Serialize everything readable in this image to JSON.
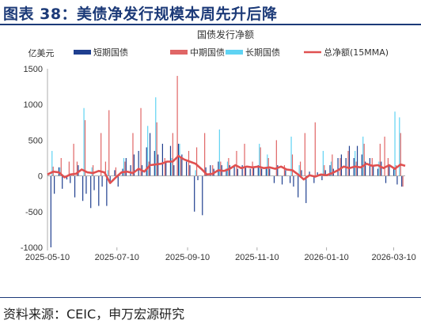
{
  "figure": {
    "title": "图表 38：美债净发行规模本周先升后降",
    "source": "资料来源：CEIC，申万宏源研究"
  },
  "colors": {
    "short": "#1f3f8f",
    "mid": "#e06666",
    "long": "#5fd3f3",
    "total": "#e05050",
    "title": "#1c3a78"
  },
  "chart_data": {
    "type": "bar",
    "title": "国债发行净额",
    "ylabel": "亿美元",
    "ylim": [
      -1000,
      1500
    ],
    "yticks": [
      -1000,
      -500,
      0,
      500,
      1000,
      1500
    ],
    "xlim": [
      "2025-05-10",
      "2026-03-20"
    ],
    "xticks": [
      "2025-05-10",
      "2025-07-10",
      "2025-09-10",
      "2025-11-10",
      "2026-01-10",
      "2026-03-10"
    ],
    "legend_placement": "top",
    "grid": false,
    "series": [
      {
        "name": "短期国债",
        "kind": "bar",
        "points": [
          [
            "2025-05-13",
            -1000
          ],
          [
            "2025-05-16",
            -250
          ],
          [
            "2025-05-20",
            120
          ],
          [
            "2025-05-23",
            -180
          ],
          [
            "2025-05-27",
            -50
          ],
          [
            "2025-05-30",
            -100
          ],
          [
            "2025-06-03",
            -300
          ],
          [
            "2025-06-06",
            150
          ],
          [
            "2025-06-10",
            -350
          ],
          [
            "2025-06-13",
            -250
          ],
          [
            "2025-06-17",
            -450
          ],
          [
            "2025-06-20",
            -200
          ],
          [
            "2025-06-24",
            -420
          ],
          [
            "2025-06-27",
            -150
          ],
          [
            "2025-07-01",
            -420
          ],
          [
            "2025-07-04",
            -80
          ],
          [
            "2025-07-08",
            80
          ],
          [
            "2025-07-11",
            -150
          ],
          [
            "2025-07-15",
            100
          ],
          [
            "2025-07-18",
            250
          ],
          [
            "2025-07-22",
            150
          ],
          [
            "2025-07-25",
            300
          ],
          [
            "2025-07-29",
            350
          ],
          [
            "2025-08-01",
            150
          ],
          [
            "2025-08-05",
            400
          ],
          [
            "2025-08-08",
            600
          ],
          [
            "2025-08-12",
            350
          ],
          [
            "2025-08-15",
            300
          ],
          [
            "2025-08-19",
            450
          ],
          [
            "2025-08-22",
            200
          ],
          [
            "2025-08-26",
            420
          ],
          [
            "2025-08-29",
            150
          ],
          [
            "2025-09-02",
            450
          ],
          [
            "2025-09-05",
            300
          ],
          [
            "2025-09-09",
            200
          ],
          [
            "2025-09-12",
            150
          ],
          [
            "2025-09-16",
            -500
          ],
          [
            "2025-09-19",
            -60
          ],
          [
            "2025-09-23",
            -550
          ],
          [
            "2025-09-26",
            120
          ],
          [
            "2025-09-30",
            150
          ],
          [
            "2025-10-03",
            100
          ],
          [
            "2025-10-07",
            200
          ],
          [
            "2025-10-10",
            150
          ],
          [
            "2025-10-14",
            100
          ],
          [
            "2025-10-17",
            150
          ],
          [
            "2025-10-21",
            150
          ],
          [
            "2025-10-24",
            100
          ],
          [
            "2025-10-28",
            150
          ],
          [
            "2025-10-31",
            120
          ],
          [
            "2025-11-04",
            100
          ],
          [
            "2025-11-07",
            120
          ],
          [
            "2025-11-11",
            150
          ],
          [
            "2025-11-14",
            100
          ],
          [
            "2025-11-18",
            120
          ],
          [
            "2025-11-21",
            100
          ],
          [
            "2025-11-25",
            -100
          ],
          [
            "2025-11-28",
            150
          ],
          [
            "2025-12-02",
            -120
          ],
          [
            "2025-12-05",
            80
          ],
          [
            "2025-12-09",
            -100
          ],
          [
            "2025-12-12",
            -150
          ],
          [
            "2025-12-16",
            -300
          ],
          [
            "2025-12-19",
            80
          ],
          [
            "2025-12-23",
            -380
          ],
          [
            "2025-12-26",
            60
          ],
          [
            "2025-12-30",
            -100
          ],
          [
            "2026-01-02",
            50
          ],
          [
            "2026-01-06",
            -60
          ],
          [
            "2026-01-09",
            80
          ],
          [
            "2026-01-13",
            150
          ],
          [
            "2026-01-16",
            100
          ],
          [
            "2026-01-20",
            250
          ],
          [
            "2026-01-23",
            300
          ],
          [
            "2026-01-27",
            250
          ],
          [
            "2026-01-30",
            420
          ],
          [
            "2026-02-03",
            250
          ],
          [
            "2026-02-06",
            420
          ],
          [
            "2026-02-10",
            300
          ],
          [
            "2026-02-13",
            200
          ],
          [
            "2026-02-17",
            250
          ],
          [
            "2026-02-20",
            150
          ],
          [
            "2026-02-24",
            100
          ],
          [
            "2026-02-27",
            200
          ],
          [
            "2026-03-03",
            -100
          ],
          [
            "2026-03-06",
            150
          ],
          [
            "2026-03-10",
            100
          ],
          [
            "2026-03-13",
            -120
          ],
          [
            "2026-03-17",
            -150
          ]
        ]
      },
      {
        "name": "中期国债",
        "kind": "bar",
        "points": [
          [
            "2025-05-15",
            130
          ],
          [
            "2025-05-22",
            250
          ],
          [
            "2025-05-29",
            200
          ],
          [
            "2025-06-02",
            450
          ],
          [
            "2025-06-05",
            200
          ],
          [
            "2025-06-12",
            780
          ],
          [
            "2025-06-19",
            150
          ],
          [
            "2025-06-26",
            600
          ],
          [
            "2025-06-30",
            200
          ],
          [
            "2025-07-03",
            920
          ],
          [
            "2025-07-09",
            120
          ],
          [
            "2025-07-17",
            200
          ],
          [
            "2025-07-24",
            600
          ],
          [
            "2025-07-31",
            950
          ],
          [
            "2025-08-07",
            200
          ],
          [
            "2025-08-14",
            750
          ],
          [
            "2025-08-21",
            250
          ],
          [
            "2025-08-28",
            600
          ],
          [
            "2025-09-01",
            1400
          ],
          [
            "2025-09-04",
            250
          ],
          [
            "2025-09-11",
            350
          ],
          [
            "2025-09-18",
            400
          ],
          [
            "2025-09-25",
            600
          ],
          [
            "2025-10-02",
            150
          ],
          [
            "2025-10-09",
            200
          ],
          [
            "2025-10-16",
            250
          ],
          [
            "2025-10-23",
            350
          ],
          [
            "2025-10-30",
            450
          ],
          [
            "2025-11-06",
            200
          ],
          [
            "2025-11-13",
            400
          ],
          [
            "2025-11-20",
            250
          ],
          [
            "2025-11-27",
            500
          ],
          [
            "2025-12-04",
            150
          ],
          [
            "2025-12-11",
            300
          ],
          [
            "2025-12-18",
            200
          ],
          [
            "2025-12-22",
            600
          ],
          [
            "2025-12-31",
            750
          ],
          [
            "2026-01-08",
            150
          ],
          [
            "2026-01-15",
            300
          ],
          [
            "2026-01-22",
            250
          ],
          [
            "2026-01-29",
            350
          ],
          [
            "2026-02-05",
            200
          ],
          [
            "2026-02-12",
            450
          ],
          [
            "2026-02-19",
            250
          ],
          [
            "2026-02-26",
            450
          ],
          [
            "2026-03-02",
            550
          ],
          [
            "2026-03-05",
            250
          ],
          [
            "2026-03-12",
            150
          ],
          [
            "2026-03-16",
            600
          ],
          [
            "2026-03-18",
            -150
          ]
        ]
      },
      {
        "name": "长期国债",
        "kind": "bar",
        "points": [
          [
            "2025-05-14",
            350
          ],
          [
            "2025-05-21",
            120
          ],
          [
            "2025-06-11",
            950
          ],
          [
            "2025-06-18",
            120
          ],
          [
            "2025-07-02",
            80
          ],
          [
            "2025-07-16",
            250
          ],
          [
            "2025-08-06",
            700
          ],
          [
            "2025-08-13",
            1100
          ],
          [
            "2025-08-27",
            250
          ],
          [
            "2025-09-03",
            450
          ],
          [
            "2025-09-17",
            80
          ],
          [
            "2025-10-08",
            650
          ],
          [
            "2025-10-15",
            200
          ],
          [
            "2025-11-12",
            450
          ],
          [
            "2025-11-19",
            300
          ],
          [
            "2025-12-10",
            550
          ],
          [
            "2025-12-17",
            150
          ],
          [
            "2026-01-07",
            350
          ],
          [
            "2026-01-14",
            200
          ],
          [
            "2026-02-04",
            350
          ],
          [
            "2026-02-11",
            550
          ],
          [
            "2026-02-25",
            200
          ],
          [
            "2026-03-11",
            900
          ],
          [
            "2026-03-15",
            820
          ]
        ]
      },
      {
        "name": "总净额(15MMA)",
        "kind": "line",
        "points": [
          [
            "2025-05-10",
            20
          ],
          [
            "2025-05-15",
            60
          ],
          [
            "2025-05-20",
            50
          ],
          [
            "2025-05-25",
            -20
          ],
          [
            "2025-05-30",
            20
          ],
          [
            "2025-06-04",
            30
          ],
          [
            "2025-06-09",
            90
          ],
          [
            "2025-06-14",
            50
          ],
          [
            "2025-06-19",
            40
          ],
          [
            "2025-06-24",
            70
          ],
          [
            "2025-06-29",
            50
          ],
          [
            "2025-07-04",
            -100
          ],
          [
            "2025-07-09",
            -20
          ],
          [
            "2025-07-14",
            50
          ],
          [
            "2025-07-19",
            60
          ],
          [
            "2025-07-24",
            40
          ],
          [
            "2025-07-29",
            100
          ],
          [
            "2025-08-03",
            60
          ],
          [
            "2025-08-08",
            150
          ],
          [
            "2025-08-13",
            160
          ],
          [
            "2025-08-18",
            170
          ],
          [
            "2025-08-23",
            200
          ],
          [
            "2025-08-28",
            200
          ],
          [
            "2025-09-02",
            280
          ],
          [
            "2025-09-07",
            230
          ],
          [
            "2025-09-12",
            200
          ],
          [
            "2025-09-17",
            170
          ],
          [
            "2025-09-22",
            100
          ],
          [
            "2025-09-27",
            20
          ],
          [
            "2025-10-02",
            30
          ],
          [
            "2025-10-07",
            80
          ],
          [
            "2025-10-12",
            70
          ],
          [
            "2025-10-17",
            100
          ],
          [
            "2025-10-22",
            150
          ],
          [
            "2025-10-27",
            110
          ],
          [
            "2025-11-01",
            130
          ],
          [
            "2025-11-06",
            120
          ],
          [
            "2025-11-11",
            130
          ],
          [
            "2025-11-16",
            110
          ],
          [
            "2025-11-21",
            120
          ],
          [
            "2025-11-26",
            100
          ],
          [
            "2025-12-01",
            130
          ],
          [
            "2025-12-06",
            90
          ],
          [
            "2025-12-11",
            80
          ],
          [
            "2025-12-16",
            20
          ],
          [
            "2025-12-21",
            -50
          ],
          [
            "2025-12-26",
            10
          ],
          [
            "2025-12-31",
            -10
          ],
          [
            "2026-01-05",
            20
          ],
          [
            "2026-01-10",
            10
          ],
          [
            "2026-01-15",
            40
          ],
          [
            "2026-01-20",
            80
          ],
          [
            "2026-01-25",
            130
          ],
          [
            "2026-01-30",
            110
          ],
          [
            "2026-02-04",
            130
          ],
          [
            "2026-02-09",
            120
          ],
          [
            "2026-02-14",
            170
          ],
          [
            "2026-02-19",
            140
          ],
          [
            "2026-02-24",
            150
          ],
          [
            "2026-03-01",
            110
          ],
          [
            "2026-03-06",
            150
          ],
          [
            "2026-03-11",
            100
          ],
          [
            "2026-03-16",
            160
          ],
          [
            "2026-03-20",
            140
          ]
        ]
      }
    ]
  }
}
